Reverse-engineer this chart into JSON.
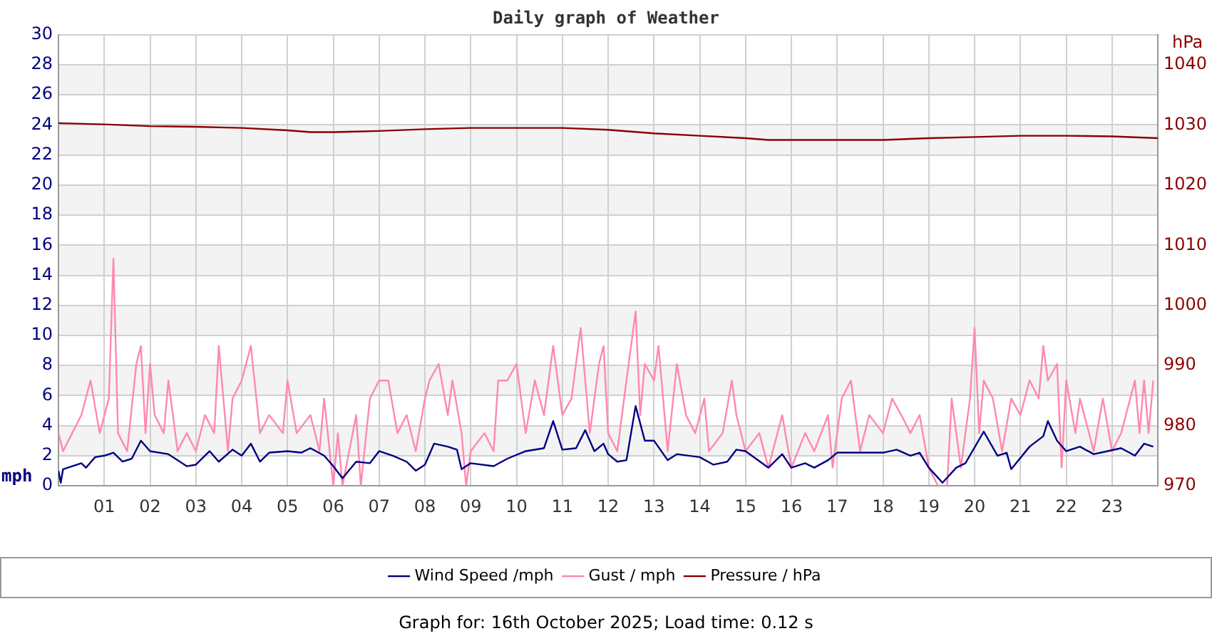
{
  "chart_data": {
    "type": "line",
    "title": "Daily graph of Weather",
    "ylabel": "mph",
    "y2label": "hPa",
    "annotations": [
      "Graph for: 16th October 2025; Load time: 0.12 s"
    ],
    "xlim": [
      0,
      24
    ],
    "xticks": [
      {
        "value": 1,
        "label": "01"
      },
      {
        "value": 2,
        "label": "02"
      },
      {
        "value": 3,
        "label": "03"
      },
      {
        "value": 4,
        "label": "04"
      },
      {
        "value": 5,
        "label": "05"
      },
      {
        "value": 6,
        "label": "06"
      },
      {
        "value": 7,
        "label": "07"
      },
      {
        "value": 8,
        "label": "08"
      },
      {
        "value": 9,
        "label": "09"
      },
      {
        "value": 10,
        "label": "10"
      },
      {
        "value": 11,
        "label": "11"
      },
      {
        "value": 12,
        "label": "12"
      },
      {
        "value": 13,
        "label": "13"
      },
      {
        "value": 14,
        "label": "14"
      },
      {
        "value": 15,
        "label": "15"
      },
      {
        "value": 16,
        "label": "16"
      },
      {
        "value": 17,
        "label": "17"
      },
      {
        "value": 18,
        "label": "18"
      },
      {
        "value": 19,
        "label": "19"
      },
      {
        "value": 20,
        "label": "20"
      },
      {
        "value": 21,
        "label": "21"
      },
      {
        "value": 22,
        "label": "22"
      },
      {
        "value": 23,
        "label": "23"
      }
    ],
    "ylim": [
      0,
      30
    ],
    "yticks": [
      0,
      2,
      4,
      6,
      8,
      10,
      12,
      14,
      16,
      18,
      20,
      22,
      24,
      26,
      28,
      30
    ],
    "y2lim": [
      970,
      1045
    ],
    "y2ticks": [
      970,
      980,
      990,
      1000,
      1010,
      1020,
      1030,
      1040
    ],
    "grid": true,
    "legend": "bottom",
    "marker": "none",
    "line_style": "solid",
    "series": [
      {
        "name": "Wind Speed /mph",
        "color": "#000080",
        "x": [
          0,
          0.05,
          0.1,
          0.5,
          0.6,
          0.8,
          1.0,
          1.2,
          1.4,
          1.6,
          1.8,
          2.0,
          2.4,
          2.8,
          3.0,
          3.3,
          3.5,
          3.8,
          4.0,
          4.2,
          4.4,
          4.6,
          5.0,
          5.3,
          5.5,
          5.8,
          6.0,
          6.2,
          6.5,
          6.8,
          7.0,
          7.3,
          7.6,
          7.8,
          8.0,
          8.2,
          8.5,
          8.7,
          8.8,
          9.0,
          9.5,
          9.8,
          10.2,
          10.6,
          10.8,
          11.0,
          11.3,
          11.5,
          11.7,
          11.9,
          12.0,
          12.2,
          12.4,
          12.6,
          12.8,
          13.0,
          13.3,
          13.5,
          14.0,
          14.3,
          14.6,
          14.8,
          15.0,
          15.5,
          15.8,
          16.0,
          16.3,
          16.5,
          16.8,
          17.0,
          17.5,
          18.0,
          18.3,
          18.6,
          18.8,
          19.0,
          19.3,
          19.6,
          19.8,
          20.2,
          20.5,
          20.7,
          20.8,
          21.2,
          21.5,
          21.6,
          21.8,
          22.0,
          22.3,
          22.6,
          22.9,
          23.2,
          23.5,
          23.7,
          23.9
        ],
        "values": [
          1.0,
          0.2,
          1.1,
          1.5,
          1.2,
          1.9,
          2.0,
          2.2,
          1.6,
          1.8,
          3.0,
          2.3,
          2.1,
          1.3,
          1.4,
          2.3,
          1.6,
          2.4,
          2.0,
          2.8,
          1.6,
          2.2,
          2.3,
          2.2,
          2.5,
          2.0,
          1.3,
          0.5,
          1.6,
          1.5,
          2.3,
          2.0,
          1.6,
          1.0,
          1.4,
          2.8,
          2.6,
          2.4,
          1.1,
          1.5,
          1.3,
          1.8,
          2.3,
          2.5,
          4.3,
          2.4,
          2.5,
          3.7,
          2.3,
          2.8,
          2.1,
          1.6,
          1.7,
          5.3,
          3.0,
          3.0,
          1.7,
          2.1,
          1.9,
          1.4,
          1.6,
          2.4,
          2.3,
          1.2,
          2.1,
          1.2,
          1.5,
          1.2,
          1.7,
          2.2,
          2.2,
          2.2,
          2.4,
          2.0,
          2.2,
          1.2,
          0.2,
          1.2,
          1.5,
          3.6,
          2.0,
          2.2,
          1.1,
          2.6,
          3.3,
          4.3,
          3.0,
          2.3,
          2.6,
          2.1,
          2.3,
          2.5,
          2.0,
          2.8,
          2.6
        ]
      },
      {
        "name": "Gust / mph",
        "color": "#ff88b0",
        "x": [
          0,
          0.1,
          0.3,
          0.5,
          0.7,
          0.9,
          1.1,
          1.2,
          1.3,
          1.5,
          1.7,
          1.8,
          1.9,
          2.0,
          2.1,
          2.3,
          2.4,
          2.6,
          2.8,
          3.0,
          3.2,
          3.4,
          3.5,
          3.7,
          3.8,
          4.0,
          4.2,
          4.4,
          4.6,
          4.9,
          5.0,
          5.2,
          5.5,
          5.7,
          5.8,
          6.0,
          6.1,
          6.2,
          6.5,
          6.6,
          6.8,
          7.0,
          7.2,
          7.4,
          7.6,
          7.8,
          8.0,
          8.1,
          8.3,
          8.5,
          8.6,
          8.8,
          8.9,
          9.0,
          9.3,
          9.5,
          9.6,
          9.8,
          10.0,
          10.2,
          10.4,
          10.6,
          10.8,
          11.0,
          11.2,
          11.4,
          11.6,
          11.8,
          11.9,
          12.0,
          12.2,
          12.4,
          12.6,
          12.7,
          12.8,
          13.0,
          13.1,
          13.3,
          13.5,
          13.7,
          13.9,
          14.1,
          14.2,
          14.5,
          14.7,
          14.8,
          15.0,
          15.3,
          15.5,
          15.8,
          16.0,
          16.3,
          16.5,
          16.8,
          16.9,
          17.1,
          17.3,
          17.5,
          17.7,
          18.0,
          18.2,
          18.4,
          18.6,
          18.8,
          19.0,
          19.2,
          19.4,
          19.5,
          19.7,
          19.9,
          20.0,
          20.1,
          20.2,
          20.4,
          20.6,
          20.8,
          21.0,
          21.2,
          21.4,
          21.5,
          21.6,
          21.8,
          21.9,
          22.0,
          22.2,
          22.3,
          22.6,
          22.8,
          23.0,
          23.2,
          23.5,
          23.6,
          23.7,
          23.8,
          23.9
        ],
        "values": [
          3.5,
          2.3,
          3.5,
          4.7,
          7.0,
          3.5,
          5.8,
          15.1,
          3.5,
          2.3,
          8.1,
          9.3,
          3.5,
          8.1,
          4.7,
          3.5,
          7.0,
          2.3,
          3.5,
          2.3,
          4.7,
          3.5,
          9.3,
          2.3,
          5.8,
          7.0,
          9.3,
          3.5,
          4.7,
          3.5,
          7.0,
          3.5,
          4.7,
          2.3,
          5.8,
          0,
          3.5,
          0,
          4.7,
          0,
          5.8,
          7.0,
          7.0,
          3.5,
          4.7,
          2.3,
          5.8,
          7.0,
          8.1,
          4.7,
          7.0,
          3.5,
          0,
          2.3,
          3.5,
          2.3,
          7.0,
          7.0,
          8.1,
          3.5,
          7.0,
          4.7,
          9.3,
          4.7,
          5.8,
          10.5,
          3.5,
          8.1,
          9.3,
          3.5,
          2.3,
          7.0,
          11.6,
          4.7,
          8.1,
          7.0,
          9.3,
          2.3,
          8.1,
          4.7,
          3.5,
          5.8,
          2.3,
          3.5,
          7.0,
          4.7,
          2.3,
          3.5,
          1.2,
          4.7,
          1.2,
          3.5,
          2.3,
          4.7,
          1.2,
          5.8,
          7.0,
          2.3,
          4.7,
          3.5,
          5.8,
          4.7,
          3.5,
          4.7,
          1.2,
          0,
          0,
          5.8,
          1.2,
          5.8,
          10.5,
          3.5,
          7.0,
          5.8,
          2.3,
          5.8,
          4.7,
          7.0,
          5.8,
          9.3,
          7.0,
          8.1,
          1.2,
          7.0,
          3.5,
          5.8,
          2.3,
          5.8,
          2.3,
          3.5,
          7.0,
          3.5,
          7.0,
          3.5,
          7.0
        ]
      },
      {
        "name": "Pressure / hPa",
        "color": "#8b0000",
        "axis": "y2",
        "x": [
          0,
          1,
          2,
          3,
          4,
          5,
          5.5,
          6,
          7,
          8,
          9,
          10,
          11,
          12,
          13,
          14,
          15,
          15.5,
          16,
          17,
          18,
          19,
          20,
          21,
          22,
          23,
          24
        ],
        "values": [
          1030.3,
          1030.1,
          1029.8,
          1029.7,
          1029.5,
          1029.1,
          1028.8,
          1028.8,
          1029.0,
          1029.3,
          1029.5,
          1029.5,
          1029.5,
          1029.2,
          1028.6,
          1028.2,
          1027.8,
          1027.5,
          1027.5,
          1027.5,
          1027.5,
          1027.8,
          1028.0,
          1028.2,
          1028.2,
          1028.1,
          1027.8
        ]
      }
    ]
  }
}
